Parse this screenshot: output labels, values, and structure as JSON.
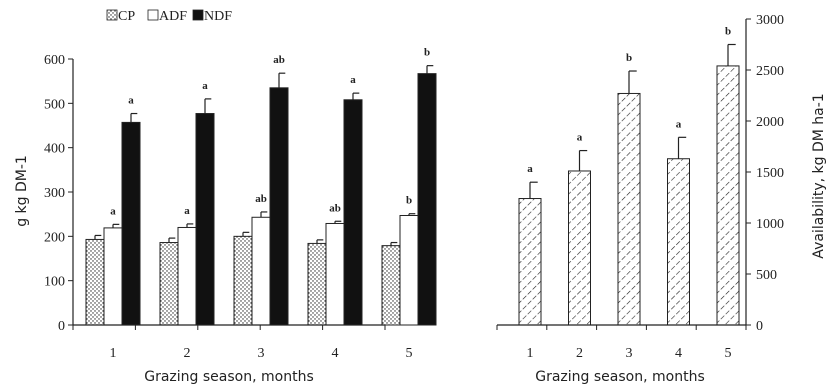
{
  "chart_data": [
    {
      "type": "bar",
      "categories": [
        "1",
        "2",
        "3",
        "4",
        "5"
      ],
      "series": [
        {
          "name": "CP",
          "pattern": "dots",
          "values": [
            193,
            186,
            200,
            184,
            179
          ],
          "errors": [
            9,
            10,
            9,
            8,
            7
          ],
          "sig": [
            "",
            "",
            "",
            "",
            ""
          ]
        },
        {
          "name": "ADF",
          "pattern": "white",
          "values": [
            219,
            220,
            243,
            229,
            247
          ],
          "errors": [
            8,
            8,
            12,
            5,
            4
          ],
          "sig": [
            "a",
            "a",
            "ab",
            "ab",
            "b"
          ]
        },
        {
          "name": "NDF",
          "pattern": "black",
          "values": [
            457,
            477,
            535,
            508,
            567
          ],
          "errors": [
            20,
            33,
            33,
            15,
            18
          ],
          "sig": [
            "a",
            "a",
            "ab",
            "a",
            "b"
          ]
        }
      ],
      "xlabel": "Grazing season, months",
      "ylabel": "g kg DM-1",
      "ylim": [
        0,
        600
      ],
      "yticks": [
        "0",
        "100",
        "200",
        "300",
        "400",
        "500",
        "600"
      ],
      "legend_position": "top-left",
      "grid": false
    },
    {
      "type": "bar",
      "categories": [
        "1",
        "2",
        "3",
        "4",
        "5"
      ],
      "series": [
        {
          "name": "",
          "pattern": "hatch",
          "values": [
            1240,
            1510,
            2270,
            1630,
            2540
          ],
          "errors": [
            160,
            200,
            220,
            210,
            210
          ],
          "sig": [
            "a",
            "a",
            "b",
            "a",
            "b"
          ]
        }
      ],
      "xlabel": "Grazing season, months",
      "ylabel": "Availability, kg DM ha-1",
      "ylim": [
        0,
        3000
      ],
      "yticks": [
        "0",
        "500",
        "1000",
        "1500",
        "2000",
        "2500",
        "3000"
      ],
      "grid": false
    }
  ]
}
